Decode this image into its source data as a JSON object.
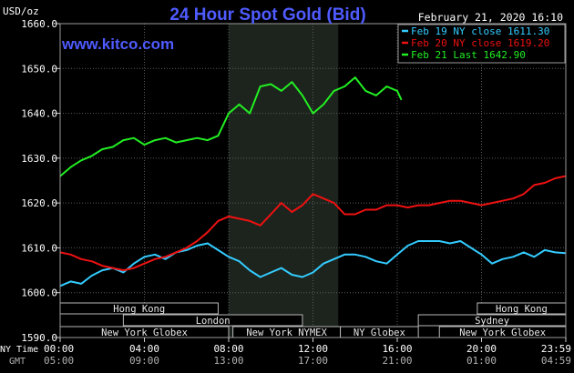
{
  "chart_data": {
    "type": "line",
    "title": "24 Hour Spot Gold (Bid)",
    "watermark": "www.kitco.com",
    "ylabel": "USD/oz",
    "date_label": "February 21, 2020 16:10",
    "ylim": [
      1590.0,
      1660.0
    ],
    "y_ticks": [
      "1660.0",
      "1650.0",
      "1640.0",
      "1630.0",
      "1620.0",
      "1610.0",
      "1600.0",
      "1590.0"
    ],
    "x_hours": [
      0,
      4,
      8,
      12,
      16,
      20,
      24
    ],
    "ny_time_label": "NY Time",
    "gmt_label": "GMT",
    "ny_ticks": [
      "00:00",
      "04:00",
      "08:00",
      "12:00",
      "16:00",
      "20:00",
      "23:59"
    ],
    "gmt_ticks": [
      "05:00",
      "09:00",
      "13:00",
      "17:00",
      "21:00",
      "01:00",
      "04:59"
    ],
    "highlight_hours": [
      8,
      13.2
    ],
    "grid": true,
    "legend_position": "top-right",
    "series": [
      {
        "label": "Feb 19 NY close 1611.30",
        "color": "#33ccff",
        "x": [
          0,
          0.5,
          1,
          1.5,
          2,
          2.5,
          3,
          3.5,
          4,
          4.5,
          5,
          5.5,
          6,
          6.5,
          7,
          7.5,
          8,
          8.5,
          9,
          9.5,
          10,
          10.5,
          11,
          11.5,
          12,
          12.5,
          13,
          13.5,
          14,
          14.5,
          15,
          15.5,
          16,
          16.5,
          17,
          17.5,
          18,
          18.5,
          19,
          19.5,
          20,
          20.5,
          21,
          21.5,
          22,
          22.5,
          23,
          23.5,
          23.98
        ],
        "values": [
          1601.5,
          1602.5,
          1602.0,
          1603.8,
          1605.0,
          1605.5,
          1604.5,
          1606.5,
          1608.0,
          1608.5,
          1607.5,
          1609.0,
          1609.5,
          1610.5,
          1611.0,
          1609.5,
          1608.0,
          1607.0,
          1605.0,
          1603.5,
          1604.5,
          1605.5,
          1604.0,
          1603.5,
          1604.5,
          1606.5,
          1607.5,
          1608.5,
          1608.5,
          1608.0,
          1607.0,
          1606.5,
          1608.5,
          1610.5,
          1611.5,
          1611.5,
          1611.5,
          1611.0,
          1611.5,
          1610.0,
          1608.5,
          1606.5,
          1607.5,
          1608.0,
          1609.0,
          1608.0,
          1609.5,
          1609.0,
          1608.8
        ]
      },
      {
        "label": "Feb 20 NY close 1619.20",
        "color": "#ee1111",
        "x": [
          0,
          0.5,
          1,
          1.5,
          2,
          2.5,
          3,
          3.5,
          4,
          4.5,
          5,
          5.5,
          6,
          6.5,
          7,
          7.5,
          8,
          8.5,
          9,
          9.5,
          10,
          10.5,
          11,
          11.5,
          12,
          12.5,
          13,
          13.5,
          14,
          14.5,
          15,
          15.5,
          16,
          16.5,
          17,
          17.5,
          18,
          18.5,
          19,
          19.5,
          20,
          20.5,
          21,
          21.5,
          22,
          22.5,
          23,
          23.5,
          23.98
        ],
        "values": [
          1609.0,
          1608.5,
          1607.5,
          1607.0,
          1606.0,
          1605.5,
          1605.0,
          1605.5,
          1606.5,
          1607.5,
          1608.0,
          1609.0,
          1610.0,
          1611.5,
          1613.5,
          1616.0,
          1617.0,
          1616.5,
          1616.0,
          1615.0,
          1617.5,
          1620.0,
          1618.0,
          1619.5,
          1622.0,
          1621.0,
          1620.0,
          1617.5,
          1617.5,
          1618.5,
          1618.5,
          1619.5,
          1619.5,
          1619.0,
          1619.5,
          1619.5,
          1620.0,
          1620.5,
          1620.5,
          1620.0,
          1619.5,
          1620.0,
          1620.5,
          1621.0,
          1622.0,
          1624.0,
          1624.5,
          1625.5,
          1626.0
        ]
      },
      {
        "label": "Feb 21 Last 1642.90",
        "color": "#22ee22",
        "x": [
          0,
          0.5,
          1,
          1.5,
          2,
          2.5,
          3,
          3.5,
          4,
          4.5,
          5,
          5.5,
          6,
          6.5,
          7,
          7.5,
          8,
          8.5,
          9,
          9.5,
          10,
          10.5,
          11,
          11.5,
          12,
          12.5,
          13,
          13.5,
          14,
          14.5,
          15,
          15.5,
          16,
          16.2
        ],
        "values": [
          1626.0,
          1628.0,
          1629.5,
          1630.5,
          1632.0,
          1632.5,
          1634.0,
          1634.5,
          1633.0,
          1634.0,
          1634.5,
          1633.5,
          1634.0,
          1634.5,
          1634.0,
          1635.0,
          1640.0,
          1642.0,
          1640.0,
          1646.0,
          1646.5,
          1645.0,
          1647.0,
          1644.0,
          1640.0,
          1642.0,
          1645.0,
          1646.0,
          1648.0,
          1645.0,
          1644.0,
          1646.0,
          1645.0,
          1643.0
        ]
      }
    ],
    "sessions": [
      {
        "name": "Hong Kong",
        "start": 0,
        "end": 7.5,
        "row": 0
      },
      {
        "name": "Hong Kong",
        "start": 19.8,
        "end": 24,
        "row": 0
      },
      {
        "name": "London",
        "start": 3,
        "end": 11.5,
        "row": 1
      },
      {
        "name": "Sydney",
        "start": 17,
        "end": 24,
        "row": 1
      },
      {
        "name": "New York Globex",
        "start": 0,
        "end": 8,
        "row": 2
      },
      {
        "name": "New York NYMEX",
        "start": 8.2,
        "end": 13.3,
        "row": 2
      },
      {
        "name": "NY Globex",
        "start": 13.3,
        "end": 17,
        "row": 2
      },
      {
        "name": "New York Globex",
        "start": 18,
        "end": 24,
        "row": 2
      }
    ]
  }
}
